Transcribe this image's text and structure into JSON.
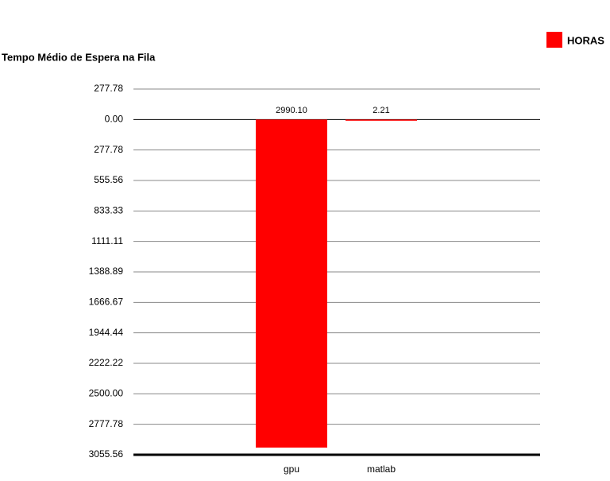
{
  "chart_data": {
    "type": "bar",
    "title": "Tempo Médio de Espera na Fila",
    "categories": [
      "gpu",
      "matlab"
    ],
    "series": [
      {
        "name": "HORAS",
        "color": "#ff0000",
        "values": [
          2990.1,
          2.21
        ],
        "value_labels": [
          "2990.10",
          "2.21"
        ]
      }
    ],
    "ylim": [
      -277.78,
      3055.56
    ],
    "y_inverted": true,
    "yticks": [
      {
        "value": -277.78,
        "label": "277.78"
      },
      {
        "value": 0,
        "label": "0.00"
      },
      277.78,
      555.56,
      833.33,
      1111.11,
      1388.89,
      1666.67,
      1944.44,
      2222.22,
      {
        "value": 2500,
        "label": "2500.00"
      },
      2777.78,
      3055.56
    ],
    "grid": true,
    "legend": "top-right"
  }
}
